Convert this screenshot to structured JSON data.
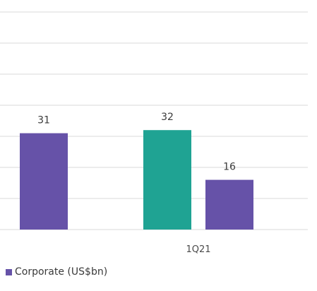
{
  "chart_data": {
    "type": "bar",
    "title": "",
    "xlabel": "",
    "ylabel": "",
    "ylim": [
      0,
      70
    ],
    "grid": true,
    "categories": [
      "",
      "1Q21"
    ],
    "series": [
      {
        "name": "",
        "color": "#1fa393",
        "values": [
          null,
          32
        ]
      },
      {
        "name": "Corporate (US$bn)",
        "color": "#6652a8",
        "values": [
          31,
          16
        ]
      }
    ],
    "legend": {
      "placement": "bottom-left",
      "entries": [
        "Corporate (US$bn)"
      ]
    }
  }
}
